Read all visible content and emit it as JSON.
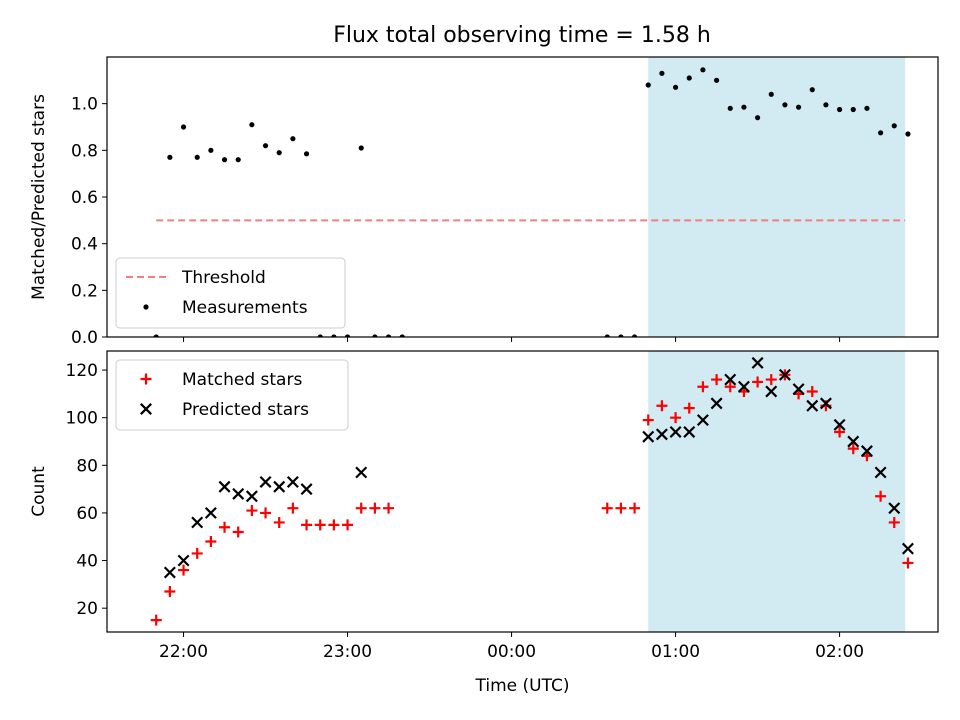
{
  "figure": {
    "title": "Flux total observing time = 1.58 h"
  },
  "chart_data": [
    {
      "type": "scatter",
      "ylabel": "Matched/Predicted stars",
      "xlabel": "",
      "ylim": [
        0,
        1.2
      ],
      "yticks": [
        0.0,
        0.2,
        0.4,
        0.6,
        0.8,
        1.0
      ],
      "ytick_labels": [
        "0.0",
        "0.2",
        "0.4",
        "0.6",
        "0.8",
        "1.0"
      ],
      "xlim": [
        "21:32",
        "02:36"
      ],
      "xticks": [
        "22:00",
        "23:00",
        "00:00",
        "01:00",
        "02:00"
      ],
      "xtick_labels_shown": false,
      "grid": false,
      "legend_position": "lower-left",
      "highlight_span": {
        "from": "00:50",
        "to": "02:24",
        "color": "#add8e6"
      },
      "threshold": {
        "name": "Threshold",
        "value": 0.5,
        "from": "21:50",
        "to": "02:24",
        "color": "#f08080",
        "style": "dashed"
      },
      "series": [
        {
          "name": "Measurements",
          "color": "#000000",
          "marker": "dot",
          "x": [
            "21:50",
            "21:55",
            "22:00",
            "22:05",
            "22:10",
            "22:15",
            "22:20",
            "22:25",
            "22:30",
            "22:35",
            "22:40",
            "22:45",
            "22:50",
            "22:55",
            "23:00",
            "23:05",
            "23:10",
            "23:15",
            "23:20",
            "23:25",
            "23:30",
            "00:00",
            "00:35",
            "00:40",
            "00:45",
            "00:50",
            "00:55",
            "01:00",
            "01:05",
            "01:10",
            "01:15",
            "01:20",
            "01:25",
            "01:30",
            "01:35",
            "01:40",
            "01:45",
            "01:50",
            "01:55",
            "02:00",
            "02:05",
            "02:10",
            "02:15",
            "02:20",
            "02:25"
          ],
          "y": [
            0.0,
            0.77,
            0.9,
            0.77,
            0.8,
            0.76,
            0.76,
            0.91,
            0.82,
            0.79,
            0.85,
            0.785,
            0.0,
            0.0,
            0.0,
            0.81,
            0.0,
            0.0,
            0.0,
            null,
            null,
            null,
            0.0,
            0.0,
            0.0,
            1.08,
            1.13,
            1.07,
            1.11,
            1.145,
            1.1,
            0.98,
            0.985,
            0.94,
            1.04,
            0.995,
            0.985,
            1.06,
            0.995,
            0.975,
            0.975,
            0.98,
            0.875,
            0.905,
            0.87
          ]
        }
      ]
    },
    {
      "type": "scatter",
      "ylabel": "Count",
      "xlabel": "Time (UTC)",
      "ylim": [
        10,
        128
      ],
      "yticks": [
        20,
        40,
        60,
        80,
        100,
        120
      ],
      "ytick_labels": [
        "20",
        "40",
        "60",
        "80",
        "100",
        "120"
      ],
      "xlim": [
        "21:32",
        "02:36"
      ],
      "xticks": [
        "22:00",
        "23:00",
        "00:00",
        "01:00",
        "02:00"
      ],
      "xtick_labels": [
        "22:00",
        "23:00",
        "00:00",
        "01:00",
        "02:00"
      ],
      "grid": false,
      "legend_position": "upper-left",
      "highlight_span": {
        "from": "00:50",
        "to": "02:24",
        "color": "#add8e6"
      },
      "series": [
        {
          "name": "Matched stars",
          "color": "#ff0000",
          "marker": "plus",
          "x": [
            "21:50",
            "21:55",
            "22:00",
            "22:05",
            "22:10",
            "22:15",
            "22:20",
            "22:25",
            "22:30",
            "22:35",
            "22:40",
            "22:45",
            "22:50",
            "22:55",
            "23:00",
            "23:05",
            "23:10",
            "23:15",
            "00:35",
            "00:40",
            "00:45",
            "00:50",
            "00:55",
            "01:00",
            "01:05",
            "01:10",
            "01:15",
            "01:20",
            "01:25",
            "01:30",
            "01:35",
            "01:40",
            "01:45",
            "01:50",
            "01:55",
            "02:00",
            "02:05",
            "02:10",
            "02:15",
            "02:20",
            "02:25"
          ],
          "y": [
            15,
            27,
            36,
            43,
            48,
            54,
            52,
            61,
            60,
            56,
            62,
            55,
            55,
            55,
            55,
            62,
            62,
            62,
            62,
            62,
            62,
            99,
            105,
            100,
            104,
            113,
            116,
            113,
            111,
            115,
            116,
            118,
            110,
            111,
            105,
            94,
            87,
            84,
            67,
            56,
            39
          ]
        },
        {
          "name": "Predicted stars",
          "color": "#000000",
          "marker": "x",
          "x": [
            "21:55",
            "22:00",
            "22:05",
            "22:10",
            "22:15",
            "22:20",
            "22:25",
            "22:30",
            "22:35",
            "22:40",
            "22:45",
            "23:05",
            "00:50",
            "00:55",
            "01:00",
            "01:05",
            "01:10",
            "01:15",
            "01:20",
            "01:25",
            "01:30",
            "01:35",
            "01:40",
            "01:45",
            "01:50",
            "01:55",
            "02:00",
            "02:05",
            "02:10",
            "02:15",
            "02:20",
            "02:25"
          ],
          "y": [
            35,
            40,
            56,
            60,
            71,
            68,
            67,
            73,
            71,
            73,
            70,
            77,
            92,
            93,
            94,
            94,
            99,
            106,
            116,
            113,
            123,
            111,
            118,
            112,
            105,
            106,
            97,
            90,
            86,
            77,
            62,
            45
          ]
        }
      ]
    }
  ]
}
